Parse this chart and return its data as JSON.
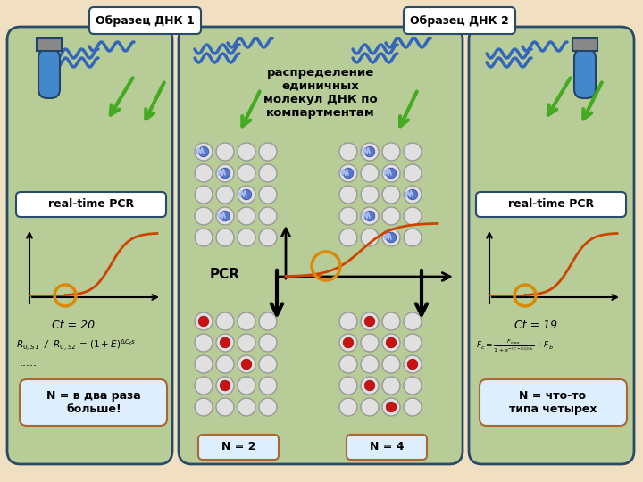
{
  "background_color": "#f0dfc0",
  "left_panel": {
    "bg_color": "#b8cc98",
    "border_color": "#2a4a6a",
    "label": "Образец ДНК 1",
    "pcr_label": "real-time PCR",
    "ct_label": "Ct = 20",
    "n_box_line1": "N = в два раза",
    "n_box_line2": "больше!"
  },
  "right_panel": {
    "bg_color": "#b8cc98",
    "border_color": "#2a4a6a",
    "label": "Образец ДНК 2",
    "pcr_label": "real-time PCR",
    "ct_label": "Ct = 19",
    "n_box_line1": "N = что-то",
    "n_box_line2": "типа четырех"
  },
  "center_panel": {
    "bg_color": "#b8cc98",
    "border_color": "#2a4a6a",
    "title_line1": "распределение",
    "title_line2": "единичных",
    "title_line3": "молекул ДНК по",
    "title_line4": "компартментам",
    "pcr_label": "PCR",
    "n2_label": "N = 2",
    "n4_label": "N = 4"
  },
  "colors": {
    "panel_border": "#2a4a6a",
    "blue_dna": "#3366bb",
    "green_arrow": "#44aa22",
    "pcr_curve": "#cc4400",
    "orange_circle": "#dd8800",
    "red_dot": "#cc1111",
    "well_bg": "#e0e0e0",
    "well_border": "#999999",
    "dna_fill": "#5577cc",
    "box_fill": "#ddeeff",
    "box_border": "#aa6633",
    "label_box_fill": "#ffffff",
    "tube_blue": "#4488cc",
    "tube_dark": "#224466"
  }
}
